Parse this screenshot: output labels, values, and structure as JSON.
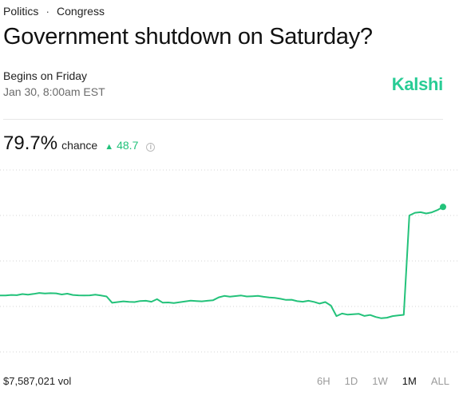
{
  "breadcrumb": {
    "category": "Politics",
    "separator": "·",
    "subcategory": "Congress"
  },
  "market": {
    "title": "Government shutdown on Saturday?",
    "begins_label": "Begins on Friday",
    "date_label": "Jan 30, 8:00am EST"
  },
  "brand": {
    "logo_text": "Kalshi",
    "accent": "#28cc95"
  },
  "stats": {
    "probability": "79.7%",
    "chance_label": "chance",
    "change_icon": "up-triangle-icon",
    "change": "48.7",
    "change_color": "#21c17a",
    "info_icon": "info-icon"
  },
  "footer": {
    "volume": "$7,587,021 vol",
    "ranges": [
      "6H",
      "1D",
      "1W",
      "1M",
      "ALL"
    ],
    "active_range": "1M"
  },
  "chart_data": {
    "type": "line",
    "series": [
      {
        "color": "#23c27a",
        "values": [
          31,
          31,
          31.3,
          31.2,
          31.8,
          31.5,
          31.9,
          32.4,
          32.1,
          32.3,
          32.2,
          31.6,
          32,
          31.3,
          31.1,
          31,
          31.1,
          31.5,
          31,
          30.5,
          27,
          27.4,
          27.8,
          27.5,
          27.4,
          28,
          28.1,
          27.6,
          29,
          27.1,
          27.2,
          26.9,
          27.3,
          27.7,
          28.2,
          28,
          27.8,
          28.1,
          28.4,
          30,
          30.8,
          30.4,
          30.7,
          31,
          30.5,
          30.6,
          30.8,
          30.3,
          29.9,
          29.7,
          29.2,
          28.6,
          28.7,
          27.9,
          27.6,
          28.1,
          27.5,
          26.6,
          27.4,
          25.5,
          19.7,
          21.1,
          20.5,
          20.7,
          20.9,
          19.8,
          20.3,
          19.2,
          18.5,
          18.8,
          19.7,
          20.1,
          20.4,
          75,
          76.5,
          76.8,
          76.1,
          76.7,
          78,
          79.7
        ]
      }
    ],
    "grid": "horizontal dotted",
    "end_marker": true
  }
}
